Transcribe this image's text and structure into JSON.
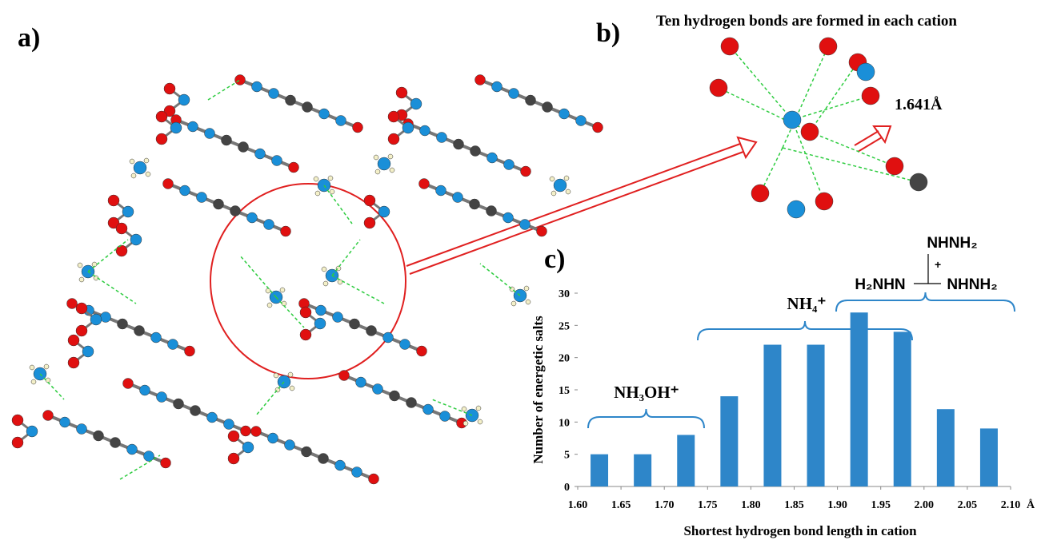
{
  "panels": {
    "a": {
      "label": "a)"
    },
    "b": {
      "label": "b)",
      "title": "Ten hydrogen bonds are formed in each cation",
      "bond_length": "1.641Å"
    },
    "c": {
      "label": "c)"
    }
  },
  "chart_data": {
    "type": "bar",
    "ylabel": "Number of  energetic salts",
    "xlabel": "Shortest hydrogen bond length in cation",
    "x_unit": "Å",
    "x": [
      1.625,
      1.675,
      1.725,
      1.775,
      1.825,
      1.875,
      1.925,
      1.975,
      2.025,
      2.075
    ],
    "values": [
      5,
      5,
      8,
      14,
      22,
      22,
      27,
      24,
      12,
      9
    ],
    "color": "#2e86c9",
    "xlim": [
      1.6,
      2.1
    ],
    "xticks": [
      {
        "value": 1.6,
        "label": "1.60"
      },
      1.65,
      {
        "value": 1.7,
        "label": "1.70"
      },
      1.75,
      {
        "value": 1.8,
        "label": "1.80"
      },
      1.85,
      {
        "value": 1.9,
        "label": "1.90"
      },
      1.95,
      {
        "value": 2.0,
        "label": "2.00"
      },
      2.05,
      {
        "value": 2.1,
        "label": "2.10"
      }
    ],
    "ylim": [
      0,
      30
    ],
    "yticks": [
      0,
      5,
      10,
      15,
      20,
      25,
      30
    ],
    "annotations": [
      "NH₃OH⁺",
      "NH₄⁺",
      "NHNH₂",
      "+",
      "H₂NHN",
      "NHNH₂"
    ]
  }
}
